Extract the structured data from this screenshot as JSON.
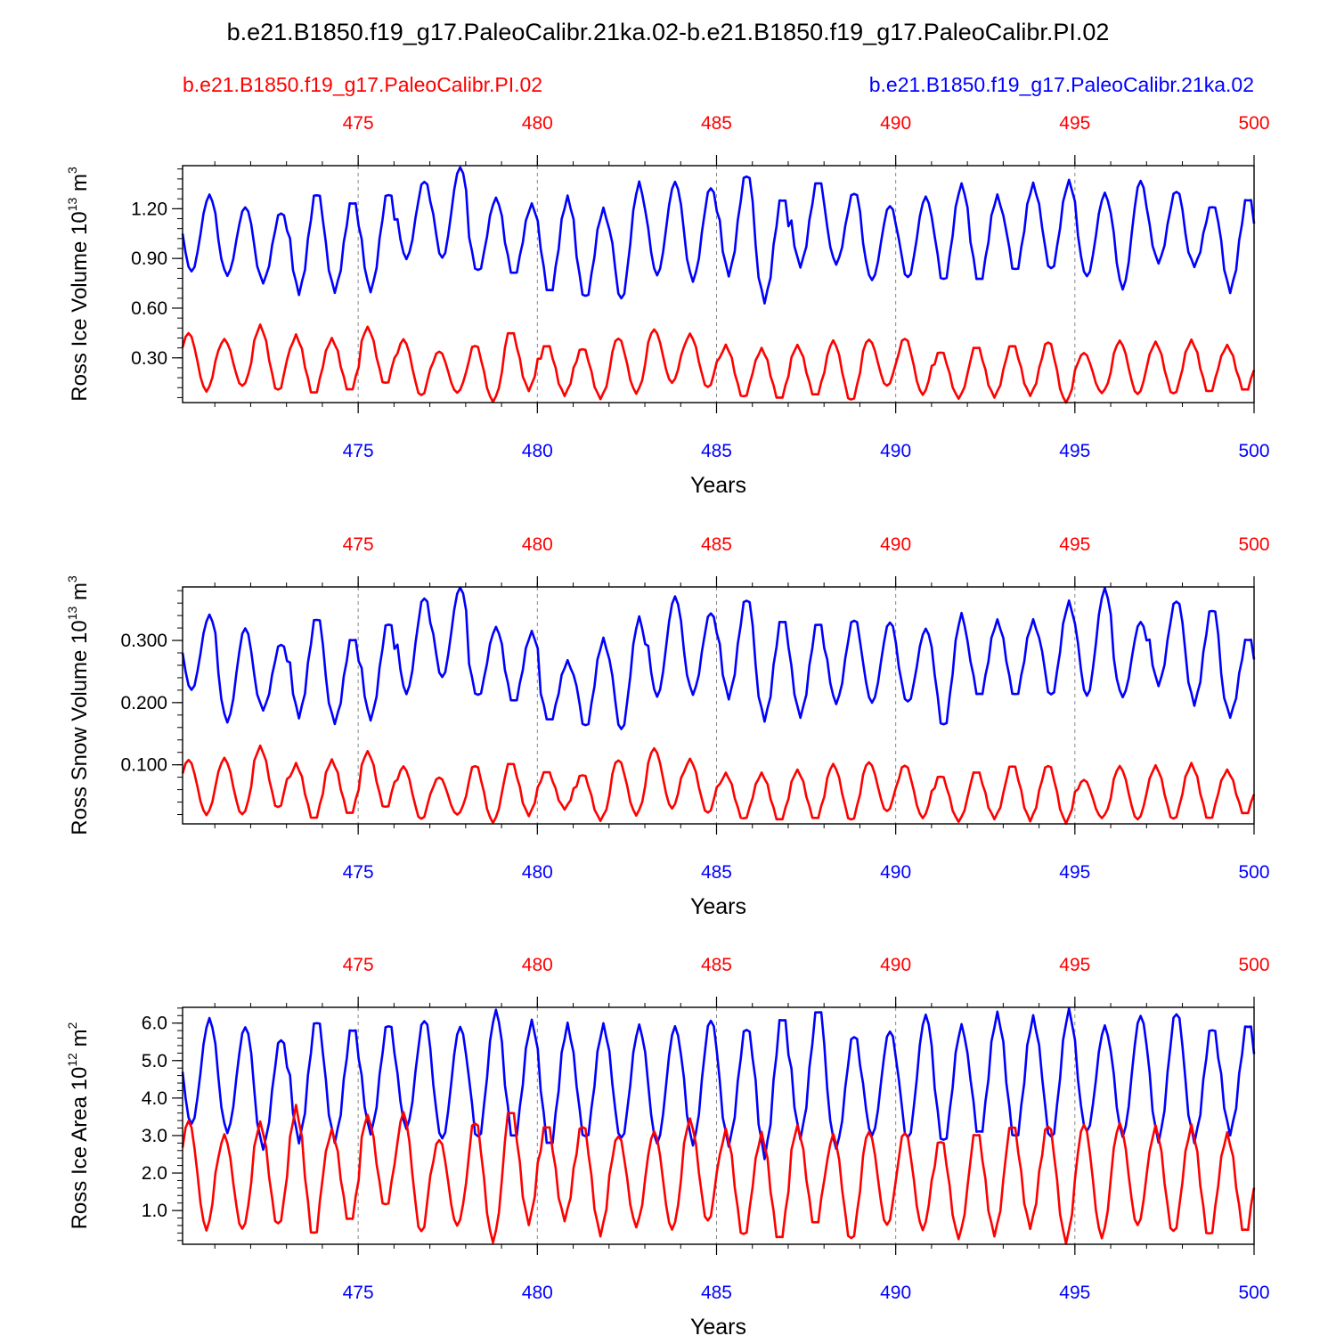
{
  "title": "b.e21.B1850.f19_g17.PaleoCalibr.21ka.02-b.e21.B1850.f19_g17.PaleoCalibr.PI.02",
  "legend": {
    "red_label": "b.e21.B1850.f19_g17.PaleoCalibr.PI.02",
    "blue_label": "b.e21.B1850.f19_g17.PaleoCalibr.21ka.02"
  },
  "colors": {
    "red": "#ff0000",
    "blue": "#0000ff",
    "axis": "#000000",
    "grid": "#888888"
  },
  "chart_data": [
    {
      "type": "line",
      "ylabel_main": "Ross Ice Volume 10",
      "ylabel_sup": "13",
      "ylabel_unit": " m",
      "ylabel_unit_sup": "3",
      "xlabel": "Years",
      "xlim": [
        470.1,
        500.0
      ],
      "ylim": [
        0.03,
        1.46
      ],
      "yticks": [
        0.3,
        0.6,
        0.9,
        1.2
      ],
      "ytick_labels": [
        "0.30",
        "0.60",
        "0.90",
        "1.20"
      ],
      "xticks": [
        475,
        480,
        485,
        490,
        495,
        500
      ],
      "xtick_labels": [
        "475",
        "480",
        "485",
        "490",
        "495",
        "500"
      ],
      "series": [
        {
          "name": "b.e21.B1850.f19_g17.PaleoCalibr.21ka.02",
          "color": "blue",
          "min_month": 3,
          "mins": [
            0.82,
            0.8,
            0.76,
            0.7,
            0.71,
            0.71,
            0.9,
            0.9,
            0.82,
            0.8,
            0.69,
            0.66,
            0.65,
            0.8,
            0.77,
            0.81,
            0.65,
            0.86,
            0.87,
            0.77,
            0.78,
            0.76,
            0.76,
            0.82,
            0.83,
            0.79,
            0.72,
            0.88,
            0.86,
            0.71
          ],
          "maxs": [
            1.28,
            1.21,
            1.18,
            1.3,
            1.25,
            1.3,
            1.37,
            1.45,
            1.26,
            1.22,
            1.26,
            1.19,
            1.35,
            1.36,
            1.33,
            1.41,
            1.27,
            1.37,
            1.3,
            1.22,
            1.27,
            1.34,
            1.27,
            1.34,
            1.36,
            1.29,
            1.37,
            1.31,
            1.22,
            1.27
          ]
        },
        {
          "name": "b.e21.B1850.f19_g17.PaleoCalibr.PI.02",
          "color": "red",
          "min_month": 8,
          "mins": [
            0.1,
            0.13,
            0.1,
            0.08,
            0.1,
            0.14,
            0.07,
            0.09,
            0.04,
            0.11,
            0.08,
            0.06,
            0.09,
            0.15,
            0.12,
            0.06,
            0.05,
            0.07,
            0.04,
            0.13,
            0.08,
            0.06,
            0.07,
            0.08,
            0.03,
            0.09,
            0.08,
            0.08,
            0.09,
            0.1
          ],
          "maxs": [
            0.45,
            0.41,
            0.49,
            0.43,
            0.41,
            0.48,
            0.41,
            0.34,
            0.38,
            0.46,
            0.38,
            0.36,
            0.42,
            0.47,
            0.44,
            0.37,
            0.35,
            0.37,
            0.4,
            0.41,
            0.42,
            0.34,
            0.37,
            0.38,
            0.4,
            0.33,
            0.4,
            0.39,
            0.4,
            0.37
          ]
        }
      ]
    },
    {
      "type": "line",
      "ylabel_main": "Ross Snow Volume 10",
      "ylabel_sup": "13",
      "ylabel_unit": " m",
      "ylabel_unit_sup": "3",
      "xlabel": "Years",
      "xlim": [
        470.1,
        500.0
      ],
      "ylim": [
        0.005,
        0.386
      ],
      "yticks": [
        0.1,
        0.2,
        0.3
      ],
      "ytick_labels": [
        "0.100",
        "0.200",
        "0.300"
      ],
      "xticks": [
        475,
        480,
        485,
        490,
        495,
        500
      ],
      "xtick_labels": [
        "475",
        "480",
        "485",
        "490",
        "495",
        "500"
      ],
      "series": [
        {
          "name": "b.e21.B1850.f19_g17.PaleoCalibr.21ka.02",
          "color": "blue",
          "min_month": 3,
          "mins": [
            0.22,
            0.17,
            0.19,
            0.18,
            0.17,
            0.175,
            0.215,
            0.24,
            0.21,
            0.2,
            0.17,
            0.16,
            0.155,
            0.21,
            0.215,
            0.21,
            0.175,
            0.18,
            0.2,
            0.2,
            0.2,
            0.16,
            0.21,
            0.21,
            0.21,
            0.21,
            0.21,
            0.23,
            0.2,
            0.18
          ],
          "maxs": [
            0.34,
            0.32,
            0.295,
            0.338,
            0.305,
            0.33,
            0.37,
            0.385,
            0.32,
            0.312,
            0.265,
            0.3,
            0.335,
            0.37,
            0.345,
            0.368,
            0.335,
            0.33,
            0.335,
            0.33,
            0.318,
            0.34,
            0.33,
            0.33,
            0.36,
            0.382,
            0.33,
            0.365,
            0.352,
            0.305
          ]
        },
        {
          "name": "b.e21.B1850.f19_g17.PaleoCalibr.PI.02",
          "color": "red",
          "min_month": 8,
          "mins": [
            0.02,
            0.02,
            0.03,
            0.012,
            0.02,
            0.03,
            0.012,
            0.02,
            0.008,
            0.02,
            0.03,
            0.012,
            0.02,
            0.03,
            0.022,
            0.012,
            0.01,
            0.012,
            0.01,
            0.025,
            0.015,
            0.01,
            0.015,
            0.012,
            0.008,
            0.015,
            0.012,
            0.012,
            0.012,
            0.02
          ],
          "maxs": [
            0.108,
            0.11,
            0.128,
            0.1,
            0.106,
            0.12,
            0.097,
            0.08,
            0.1,
            0.104,
            0.09,
            0.085,
            0.108,
            0.126,
            0.108,
            0.085,
            0.085,
            0.09,
            0.1,
            0.104,
            0.1,
            0.083,
            0.09,
            0.1,
            0.1,
            0.076,
            0.097,
            0.097,
            0.1,
            0.09
          ]
        }
      ]
    },
    {
      "type": "line",
      "ylabel_main": "Ross Ice Area 10",
      "ylabel_sup": "12",
      "ylabel_unit": " m",
      "ylabel_unit_sup": "2",
      "xlabel": "Years",
      "xlim": [
        470.1,
        500.0
      ],
      "ylim": [
        0.1,
        6.42
      ],
      "yticks": [
        1,
        2,
        3,
        4,
        5,
        6
      ],
      "ytick_labels": [
        "1.0",
        "2.0",
        "3.0",
        "4.0",
        "5.0",
        "6.0"
      ],
      "xticks": [
        475,
        480,
        485,
        490,
        495,
        500
      ],
      "xtick_labels": [
        "475",
        "480",
        "485",
        "490",
        "495",
        "500"
      ],
      "series": [
        {
          "name": "b.e21.B1850.f19_g17.PaleoCalibr.21ka.02",
          "color": "blue",
          "min_month": 3,
          "mins": [
            3.3,
            3.1,
            2.7,
            2.9,
            2.9,
            3.1,
            3.2,
            2.9,
            2.9,
            2.9,
            2.7,
            2.9,
            2.9,
            2.8,
            2.8,
            2.8,
            2.5,
            3.0,
            2.7,
            3.0,
            2.9,
            2.8,
            3.0,
            2.9,
            2.9,
            3.1,
            3.0,
            2.9,
            2.9,
            3.1
          ],
          "maxs": [
            6.1,
            5.9,
            5.6,
            6.1,
            5.9,
            6.0,
            6.1,
            5.9,
            6.3,
            6.0,
            5.9,
            5.9,
            5.9,
            5.9,
            6.1,
            5.9,
            6.2,
            6.4,
            5.7,
            5.8,
            6.2,
            5.9,
            6.2,
            6.1,
            6.3,
            5.9,
            6.2,
            6.3,
            5.9,
            6.0
          ]
        },
        {
          "name": "b.e21.B1850.f19_g17.PaleoCalibr.PI.02",
          "color": "red",
          "min_month": 8,
          "mins": [
            0.5,
            0.5,
            0.6,
            0.3,
            0.7,
            1.1,
            0.4,
            0.6,
            0.2,
            0.7,
            0.8,
            0.4,
            0.6,
            0.5,
            0.7,
            0.3,
            0.2,
            0.6,
            0.2,
            0.6,
            0.5,
            0.3,
            0.4,
            0.6,
            0.2,
            0.3,
            0.6,
            0.4,
            0.3,
            0.4
          ],
          "maxs": [
            3.4,
            3.0,
            3.3,
            3.7,
            3.1,
            3.5,
            3.6,
            2.9,
            3.4,
            3.7,
            3.3,
            3.3,
            3.0,
            3.1,
            3.4,
            3.1,
            3.0,
            3.2,
            3.0,
            3.1,
            3.1,
            2.9,
            3.1,
            3.3,
            3.3,
            3.3,
            3.3,
            3.2,
            3.2,
            3.0
          ]
        }
      ]
    }
  ]
}
